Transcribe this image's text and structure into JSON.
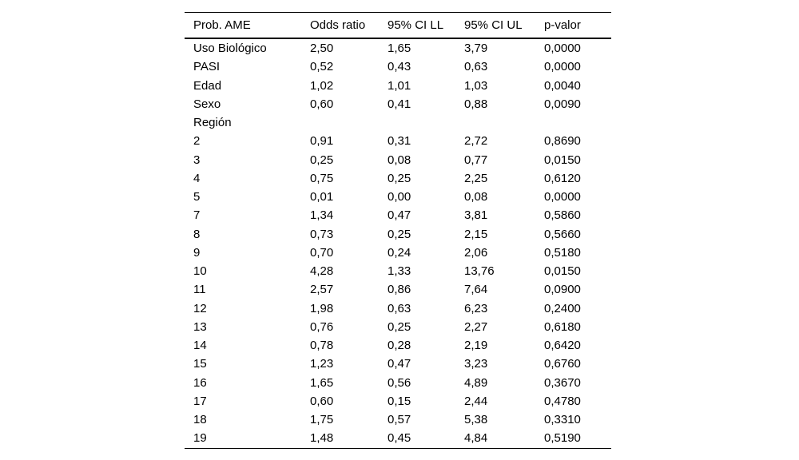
{
  "table": {
    "columns": [
      "Prob. AME",
      "Odds ratio",
      "95% CI LL",
      "95% CI UL",
      "p-valor"
    ],
    "rows": [
      [
        "Uso Biológico",
        "2,50",
        "1,65",
        "3,79",
        "0,0000"
      ],
      [
        "PASI",
        "0,52",
        "0,43",
        "0,63",
        "0,0000"
      ],
      [
        "Edad",
        "1,02",
        "1,01",
        "1,03",
        "0,0040"
      ],
      [
        "Sexo",
        "0,60",
        "0,41",
        "0,88",
        "0,0090"
      ],
      [
        "Región",
        "",
        "",
        "",
        ""
      ],
      [
        "2",
        "0,91",
        "0,31",
        "2,72",
        "0,8690"
      ],
      [
        "3",
        "0,25",
        "0,08",
        "0,77",
        "0,0150"
      ],
      [
        "4",
        "0,75",
        "0,25",
        "2,25",
        "0,6120"
      ],
      [
        "5",
        "0,01",
        "0,00",
        "0,08",
        "0,0000"
      ],
      [
        "7",
        "1,34",
        "0,47",
        "3,81",
        "0,5860"
      ],
      [
        "8",
        "0,73",
        "0,25",
        "2,15",
        "0,5660"
      ],
      [
        "9",
        "0,70",
        "0,24",
        "2,06",
        "0,5180"
      ],
      [
        "10",
        "4,28",
        "1,33",
        "13,76",
        "0,0150"
      ],
      [
        "11",
        "2,57",
        "0,86",
        "7,64",
        "0,0900"
      ],
      [
        "12",
        "1,98",
        "0,63",
        "6,23",
        "0,2400"
      ],
      [
        "13",
        "0,76",
        "0,25",
        "2,27",
        "0,6180"
      ],
      [
        "14",
        "0,78",
        "0,28",
        "2,19",
        "0,6420"
      ],
      [
        "15",
        "1,23",
        "0,47",
        "3,23",
        "0,6760"
      ],
      [
        "16",
        "1,65",
        "0,56",
        "4,89",
        "0,3670"
      ],
      [
        "17",
        "0,60",
        "0,15",
        "2,44",
        "0,4780"
      ],
      [
        "18",
        "1,75",
        "0,57",
        "5,38",
        "0,3310"
      ],
      [
        "19",
        "1,48",
        "0,45",
        "4,84",
        "0,5190"
      ]
    ],
    "colors": {
      "text": "#000000",
      "rule": "#000000",
      "background": "#ffffff"
    }
  }
}
